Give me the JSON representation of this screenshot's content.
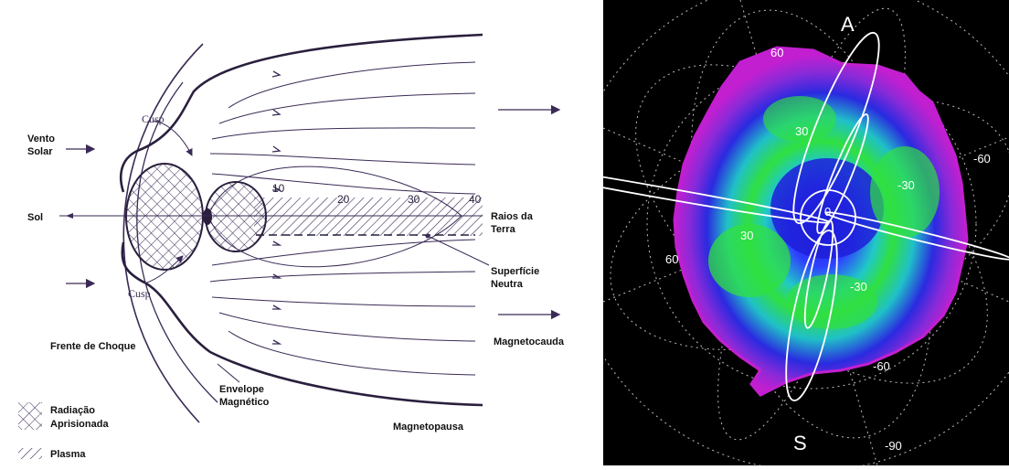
{
  "diagram": {
    "labels": {
      "vento": "Vento",
      "solar": "Solar",
      "sol": "Sol",
      "cusp_top": "Cusp",
      "cusp_bottom": "Cusp",
      "frente_de_choque": "Frente de Choque",
      "envelope": "Envelope",
      "magnetico": "Magnético",
      "raios_da": "Raios da",
      "terra": "Terra",
      "superficie": "Superfície",
      "neutra": "Neutra",
      "magnetocauda": "Magnetocauda",
      "magnetopausa": "Magnetopausa"
    },
    "distance_ticks": [
      "10",
      "20",
      "30",
      "40"
    ],
    "legend": {
      "radiacao": "Radiação",
      "aprisionada": "Aprisionada",
      "plasma": "Plasma"
    },
    "colors": {
      "line": "#3a2a55",
      "ink": "#111111"
    }
  },
  "skymap": {
    "pole_labels": {
      "top": "A",
      "bottom": "S"
    },
    "grid_labels": {
      "top_60": "60",
      "right_neg60": "-60",
      "right_neg30": "-30",
      "upper_30": "30",
      "left_30": "30",
      "left_60": "60",
      "lower_neg30": "-30",
      "lower_neg60": "-60",
      "bottom_neg90": "-90",
      "center_0": "0"
    },
    "colors": {
      "background": "#000000",
      "outer": "#c01fcf",
      "mid": "#2233dd",
      "inner": "#18c0d0",
      "core": "#30e040"
    }
  }
}
